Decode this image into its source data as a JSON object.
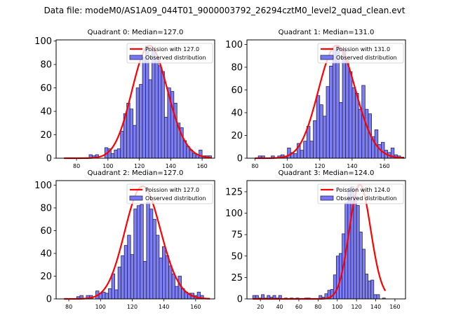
{
  "figure_title": "Data file: modeM0/AS1A09_044T01_9000003792_26294cztM0_level2_quad_clean.evt",
  "chart_data": [
    {
      "type": "bar",
      "title": "Quadrant 0: Median=127.0",
      "xlabel": "",
      "ylabel": "",
      "xlim": [
        67,
        168
      ],
      "ylim": [
        0,
        101
      ],
      "xticks": [
        80,
        100,
        120,
        140,
        160
      ],
      "yticks": [
        0,
        20,
        40,
        60,
        80,
        100
      ],
      "legend_position": "top-right",
      "legend": [
        "Poission with 127.0",
        "Observed distribution"
      ],
      "poisson_mean": 127.0,
      "poisson_peak": 96,
      "bin_start": 72,
      "bin_width": 2,
      "values": [
        0,
        0,
        0,
        0,
        0,
        0,
        0,
        0,
        3,
        2,
        3,
        0,
        0,
        9,
        8,
        4,
        7,
        8,
        23,
        38,
        47,
        42,
        28,
        60,
        63,
        86,
        96,
        67,
        92,
        85,
        79,
        74,
        35,
        60,
        57,
        47,
        30,
        26,
        15,
        10,
        7,
        4,
        3,
        7,
        2,
        2,
        2
      ]
    },
    {
      "type": "bar",
      "title": "Quadrant 1: Median=131.0",
      "xlabel": "",
      "ylabel": "",
      "xlim": [
        75,
        173
      ],
      "ylim": [
        0,
        104
      ],
      "xticks": [
        80,
        100,
        120,
        140,
        160
      ],
      "yticks": [
        0,
        20,
        40,
        60,
        80,
        100
      ],
      "legend_position": "top-right",
      "legend": [
        "Poission with 131.0",
        "Observed distribution"
      ],
      "poisson_mean": 131.0,
      "poisson_peak": 99,
      "bin_start": 80,
      "bin_width": 2,
      "values": [
        0,
        2,
        2,
        0,
        0,
        2,
        0,
        2,
        3,
        1,
        9,
        5,
        4,
        13,
        7,
        15,
        28,
        15,
        33,
        55,
        47,
        37,
        63,
        81,
        95,
        98,
        49,
        96,
        86,
        76,
        62,
        57,
        43,
        64,
        43,
        39,
        19,
        25,
        12,
        14,
        7,
        5,
        9,
        3,
        2,
        1
      ]
    },
    {
      "type": "bar",
      "title": "Quadrant 2: Median=127.0",
      "xlabel": "",
      "ylabel": "",
      "xlim": [
        72,
        172
      ],
      "ylim": [
        0,
        104
      ],
      "xticks": [
        80,
        100,
        120,
        140,
        160
      ],
      "yticks": [
        0,
        20,
        40,
        60,
        80,
        100
      ],
      "legend_position": "top-right",
      "legend": [
        "Poission with 127.0",
        "Observed distribution"
      ],
      "poisson_mean": 127.0,
      "poisson_peak": 99,
      "bin_start": 77,
      "bin_width": 2,
      "values": [
        0,
        0,
        0,
        0,
        2,
        3,
        0,
        3,
        3,
        0,
        7,
        5,
        6,
        5,
        9,
        22,
        8,
        28,
        38,
        47,
        56,
        39,
        79,
        82,
        83,
        33,
        85,
        79,
        70,
        56,
        36,
        46,
        38,
        29,
        22,
        11,
        20,
        9,
        6,
        5,
        5,
        3,
        6,
        3,
        0,
        0
      ]
    },
    {
      "type": "bar",
      "title": "Quadrant 3: Median=124.0",
      "xlabel": "",
      "ylabel": "",
      "xlim": [
        6,
        171
      ],
      "ylim": [
        0,
        138
      ],
      "xticks": [
        20,
        40,
        60,
        80,
        100,
        120,
        140,
        160
      ],
      "yticks": [
        0,
        25,
        50,
        75,
        100,
        125
      ],
      "legend_position": "top-right",
      "legend": [
        "Poission with 124.0",
        "Observed distribution"
      ],
      "poisson_mean": 124.0,
      "poisson_peak": 133,
      "bin_start": 12,
      "bin_width": 3,
      "values": [
        4,
        4,
        1,
        5,
        1,
        4,
        2,
        4,
        1,
        4,
        0,
        1,
        0,
        1,
        0,
        1,
        0,
        0,
        1,
        1,
        0,
        0,
        0,
        4,
        2,
        6,
        10,
        11,
        28,
        50,
        53,
        76,
        112,
        129,
        131,
        120,
        109,
        78,
        58,
        29,
        21,
        22,
        5,
        5,
        0,
        1
      ]
    }
  ],
  "colors": {
    "bar_fill": "#7777f2",
    "bar_edge": "#24245a",
    "poisson_line": "#ff0000",
    "axes": "#000000"
  }
}
